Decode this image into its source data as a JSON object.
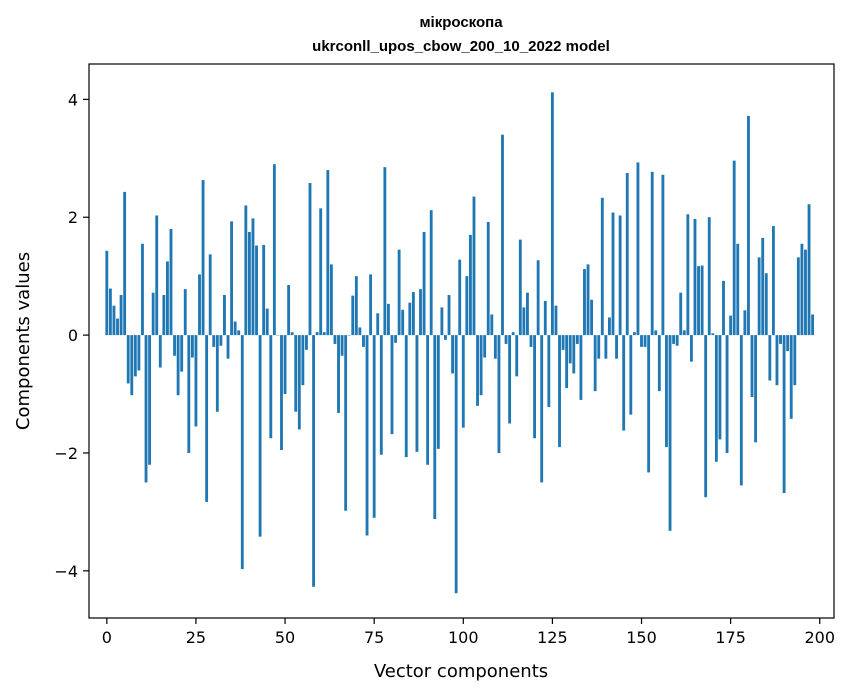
{
  "chart_data": {
    "type": "bar",
    "title_line1": "мікроскопа",
    "title_line2": "ukrconll_upos_cbow_200_10_2022 model",
    "xlabel": "Vector components",
    "ylabel": "Components values",
    "xlim": [
      -5,
      204
    ],
    "ylim": [
      -4.8,
      4.6
    ],
    "xticks": [
      0,
      25,
      50,
      75,
      100,
      125,
      150,
      175,
      200
    ],
    "yticks": [
      -4,
      -2,
      0,
      2,
      4
    ],
    "ytick_labels": [
      "−4",
      "−2",
      "0",
      "2",
      "4"
    ],
    "bar_color": "#1f77b4",
    "grid": false,
    "legend": "none",
    "values": [
      1.43,
      0.79,
      0.5,
      0.28,
      0.68,
      2.43,
      -0.82,
      -1.02,
      -0.7,
      -0.6,
      1.55,
      -2.5,
      -2.2,
      0.72,
      2.03,
      -0.55,
      0.68,
      1.25,
      1.8,
      -0.35,
      -1.02,
      -0.62,
      0.78,
      -2.0,
      -0.38,
      -1.55,
      1.03,
      2.63,
      -2.83,
      1.37,
      -0.2,
      -1.3,
      -0.18,
      0.68,
      -0.4,
      1.93,
      0.23,
      0.08,
      -3.97,
      2.2,
      1.75,
      1.98,
      1.52,
      -3.42,
      1.53,
      0.45,
      -1.75,
      2.9,
      0.0,
      -1.95,
      -1.0,
      0.85,
      0.05,
      -1.3,
      -1.6,
      -0.85,
      -0.25,
      2.58,
      -4.27,
      0.05,
      2.15,
      0.05,
      2.8,
      1.2,
      -0.15,
      -1.32,
      -0.35,
      -2.98,
      0.0,
      0.67,
      1.0,
      0.13,
      -0.2,
      -3.4,
      1.03,
      -3.1,
      0.37,
      -2.03,
      2.85,
      0.53,
      -1.68,
      -0.13,
      1.45,
      0.43,
      -2.07,
      0.55,
      0.73,
      -1.98,
      0.78,
      1.75,
      -2.2,
      2.12,
      -3.12,
      -1.93,
      0.47,
      -0.08,
      0.68,
      -0.65,
      -4.38,
      1.28,
      -1.57,
      1.0,
      1.7,
      2.35,
      -1.2,
      -1.02,
      -0.38,
      1.92,
      0.35,
      -0.4,
      -2.0,
      3.4,
      -0.15,
      -1.5,
      0.05,
      -0.7,
      1.62,
      0.47,
      0.72,
      -0.2,
      -1.75,
      1.27,
      -2.5,
      0.58,
      -1.22,
      4.12,
      0.5,
      -1.9,
      -0.25,
      -0.9,
      -0.48,
      -0.65,
      -0.15,
      -1.1,
      1.12,
      1.2,
      0.6,
      -0.95,
      -0.4,
      2.33,
      -0.4,
      0.3,
      2.08,
      -0.4,
      2.03,
      -1.62,
      2.75,
      -1.35,
      0.05,
      2.93,
      -0.2,
      -0.2,
      -2.33,
      2.77,
      0.08,
      -0.95,
      2.72,
      -1.9,
      -3.32,
      -0.15,
      -0.18,
      0.72,
      0.08,
      2.05,
      -0.45,
      1.97,
      1.17,
      1.18,
      -2.75,
      2.0,
      0.03,
      -2.15,
      -1.77,
      0.92,
      -2.0,
      0.33,
      2.96,
      1.55,
      -2.55,
      0.42,
      3.72,
      -1.05,
      -1.82,
      1.32,
      1.65,
      1.05,
      -0.77,
      1.85,
      -0.85,
      -0.15,
      -2.68,
      -0.27,
      -1.42,
      -0.85,
      1.32,
      1.55,
      1.45,
      2.22,
      0.35
    ]
  }
}
